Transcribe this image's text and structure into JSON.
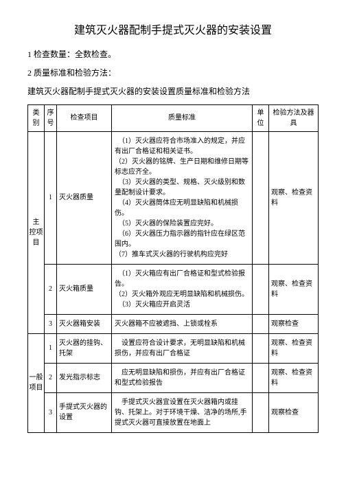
{
  "title": "建筑灭火器配制手提式灭火器的安装设置",
  "para1_label": "1 检查数量：",
  "para1_value": "全数检查。",
  "para2_label": "2 质量标准和检验方法：",
  "para3": "建筑灭火器配制手提式灭火器的安装设置质量标准和检验方法",
  "headers": {
    "category": "类别",
    "seq": "序号",
    "item": "检查项目",
    "standard": "质量标准",
    "unit": "单位",
    "method": "检验方法及器具"
  },
  "cat1": "主 控项目",
  "cat2": "一般项目",
  "rows": [
    {
      "seq": "1",
      "item": "灭火器质量",
      "std": "　（1）灭火器应符合市场准入的规定，并应有出厂合格证和相关证书。\n（2）灭火器的铭牌、生产日期和维修日期等标志应齐全。\n　（3）灭火器的类型、规格、灭火级别和数量配制设计要求。\n　（4）灭火器筒体应无明显缺陷和机械损伤。\n　（5）灭火器的保险装置应完好。\n　（6）灭火器压力指示器的指针应在绿区范围内。\n（7）推车式灭火器的行驶机构应完好",
      "method": "观察、检查资料"
    },
    {
      "seq": "2",
      "item": "灭火箱质量",
      "std": "　（1）灭火箱应有出厂合格证和型式检验报告。\n（2）灭火箱外观应无明显缺陷和机械损伤。\n　（3）灭火箱应开启灵活",
      "method": "观察、检查资料"
    },
    {
      "seq": "3",
      "item": "灭火器箱安装",
      "std": "灭火器箱不应被遮挡、上锁或栓系",
      "method": "观察检查"
    },
    {
      "seq": "1",
      "item": "灭火器的挂钩、托架",
      "std": "　设置应符合设计要求，无明显缺陷和机械损伤，并应有出厂合格证",
      "method": "观察、检查资料"
    },
    {
      "seq": "2",
      "item": "发光指示标志",
      "std": "　应无明显缺陷和损伤，并应有出厂合格证和型式检验报告",
      "method": "观察、检查资料"
    },
    {
      "seq": "3",
      "item": "手提式灭火器的设置",
      "std": "　手提式灭火器宜设置在灭火器箱内或挂钩、托架上。对于环境干燥、洁净的场所,手提式灭火器可直接放置在地面上",
      "method": "观察检查"
    }
  ]
}
